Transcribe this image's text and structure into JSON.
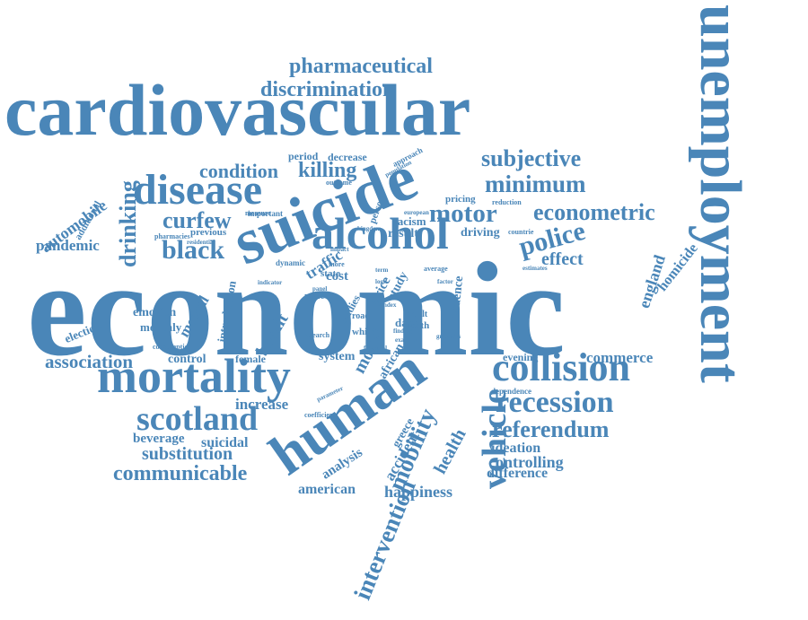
{
  "colors": {
    "word": "#4a86b8",
    "background": "#ffffff"
  },
  "words": [
    {
      "text": "economic"
    },
    {
      "text": "cardiovascular"
    },
    {
      "text": "unemployment"
    },
    {
      "text": "suicide"
    },
    {
      "text": "human"
    },
    {
      "text": "mortality"
    },
    {
      "text": "alcohol"
    },
    {
      "text": "disease"
    },
    {
      "text": "collision"
    },
    {
      "text": "scotland"
    },
    {
      "text": "vehicle"
    },
    {
      "text": "recession"
    },
    {
      "text": "pharmaceutical"
    },
    {
      "text": "discrimination"
    },
    {
      "text": "subjective"
    },
    {
      "text": "minimum"
    },
    {
      "text": "motor"
    },
    {
      "text": "econometric"
    },
    {
      "text": "police"
    },
    {
      "text": "referendum"
    },
    {
      "text": "condition"
    },
    {
      "text": "killing"
    },
    {
      "text": "black"
    },
    {
      "text": "curfew"
    },
    {
      "text": "communicable"
    },
    {
      "text": "substitution"
    },
    {
      "text": "association"
    },
    {
      "text": "intervention"
    },
    {
      "text": "mobility"
    },
    {
      "text": "drinking"
    },
    {
      "text": "automobile"
    },
    {
      "text": "pandemic"
    },
    {
      "text": "effect"
    },
    {
      "text": "england"
    },
    {
      "text": "homicide"
    },
    {
      "text": "commerce"
    },
    {
      "text": "increase"
    },
    {
      "text": "beverage"
    },
    {
      "text": "suicidal"
    },
    {
      "text": "controlling"
    },
    {
      "text": "difference"
    },
    {
      "text": "ideation"
    },
    {
      "text": "happiness"
    },
    {
      "text": "american"
    },
    {
      "text": "analysis"
    },
    {
      "text": "accident"
    },
    {
      "text": "health"
    },
    {
      "text": "greece"
    },
    {
      "text": "model"
    },
    {
      "text": "african"
    },
    {
      "text": "brexit"
    },
    {
      "text": "mental"
    },
    {
      "text": "emotion"
    },
    {
      "text": "monthly"
    },
    {
      "text": "election"
    },
    {
      "text": "control"
    },
    {
      "text": "female"
    },
    {
      "text": "system"
    },
    {
      "text": "introduction"
    },
    {
      "text": "traffic"
    },
    {
      "text": "driving"
    },
    {
      "text": "result"
    },
    {
      "text": "racism"
    },
    {
      "text": "period"
    },
    {
      "text": "decrease"
    },
    {
      "text": "pricing"
    },
    {
      "text": "evening"
    },
    {
      "text": "dependence"
    },
    {
      "text": "cost"
    },
    {
      "text": "additional"
    },
    {
      "text": "previous"
    },
    {
      "text": "pharmacies"
    },
    {
      "text": "residential"
    },
    {
      "text": "important"
    },
    {
      "text": "measure"
    },
    {
      "text": "outcome"
    },
    {
      "text": "approach"
    },
    {
      "text": "population"
    },
    {
      "text": "european"
    },
    {
      "text": "reduction"
    },
    {
      "text": "countrie"
    },
    {
      "text": "estimates"
    },
    {
      "text": "person"
    },
    {
      "text": "evidence"
    },
    {
      "text": "study"
    },
    {
      "text": "data"
    },
    {
      "text": "death"
    },
    {
      "text": "adult"
    },
    {
      "text": "white"
    },
    {
      "text": "road"
    },
    {
      "text": "price"
    },
    {
      "text": "studies"
    },
    {
      "text": "male"
    },
    {
      "text": "state"
    },
    {
      "text": "more"
    },
    {
      "text": "dynamic"
    },
    {
      "text": "consumption"
    },
    {
      "text": "research"
    },
    {
      "text": "financial"
    },
    {
      "text": "finding"
    },
    {
      "text": "examine"
    },
    {
      "text": "groceries"
    },
    {
      "text": "average"
    },
    {
      "text": "factor"
    },
    {
      "text": "index"
    },
    {
      "text": "coefficient"
    },
    {
      "text": "parameter"
    },
    {
      "text": "indicator"
    },
    {
      "text": "kingdom"
    },
    {
      "text": "impact"
    },
    {
      "text": "term"
    },
    {
      "text": "logit"
    },
    {
      "text": "panel"
    }
  ]
}
